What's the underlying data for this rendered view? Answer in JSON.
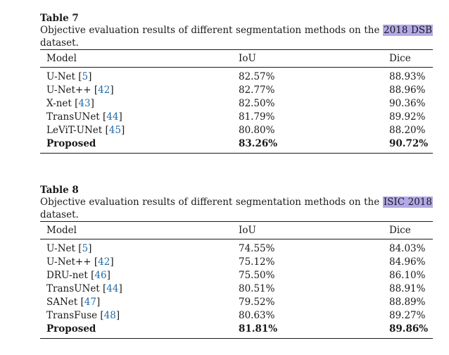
{
  "table7": {
    "title": "Table 7",
    "caption_pre": "Objective evaluation results of different segmentation methods on the ",
    "caption_highlight": "2018 DSB",
    "caption_post": " dataset.",
    "headers": [
      "Model",
      "IoU",
      "Dice"
    ],
    "rows": [
      {
        "model": "U-Net",
        "ref": "5",
        "iou": "82.57%",
        "dice": "88.93%",
        "bold": false
      },
      {
        "model": "U-Net++",
        "ref": "42",
        "iou": "82.77%",
        "dice": "88.96%",
        "bold": false
      },
      {
        "model": "X-net",
        "ref": "43",
        "iou": "82.50%",
        "dice": "90.36%",
        "bold": false
      },
      {
        "model": "TransUNet",
        "ref": "44",
        "iou": "81.79%",
        "dice": "89.92%",
        "bold": false
      },
      {
        "model": "LeViT-UNet",
        "ref": "45",
        "iou": "80.80%",
        "dice": "88.20%",
        "bold": false
      },
      {
        "model": "Proposed",
        "ref": "",
        "iou": "83.26%",
        "dice": "90.72%",
        "bold": true
      }
    ]
  },
  "table8": {
    "title": "Table 8",
    "caption_pre": "Objective evaluation results of different segmentation methods on the ",
    "caption_highlight": "ISIC 2018",
    "caption_post": " dataset.",
    "headers": [
      "Model",
      "IoU",
      "Dice"
    ],
    "rows": [
      {
        "model": "U-Net",
        "ref": "5",
        "iou": "74.55%",
        "dice": "84.03%",
        "bold": false
      },
      {
        "model": "U-Net++",
        "ref": "42",
        "iou": "75.12%",
        "dice": "84.96%",
        "bold": false
      },
      {
        "model": "DRU-net",
        "ref": "46",
        "iou": "75.50%",
        "dice": "86.10%",
        "bold": false
      },
      {
        "model": "TransUNet",
        "ref": "44",
        "iou": "80.51%",
        "dice": "88.91%",
        "bold": false
      },
      {
        "model": "SANet",
        "ref": "47",
        "iou": "79.52%",
        "dice": "88.89%",
        "bold": false
      },
      {
        "model": "TransFuse",
        "ref": "48",
        "iou": "80.63%",
        "dice": "89.27%",
        "bold": false
      },
      {
        "model": "Proposed",
        "ref": "",
        "iou": "81.81%",
        "dice": "89.86%",
        "bold": true
      }
    ]
  }
}
